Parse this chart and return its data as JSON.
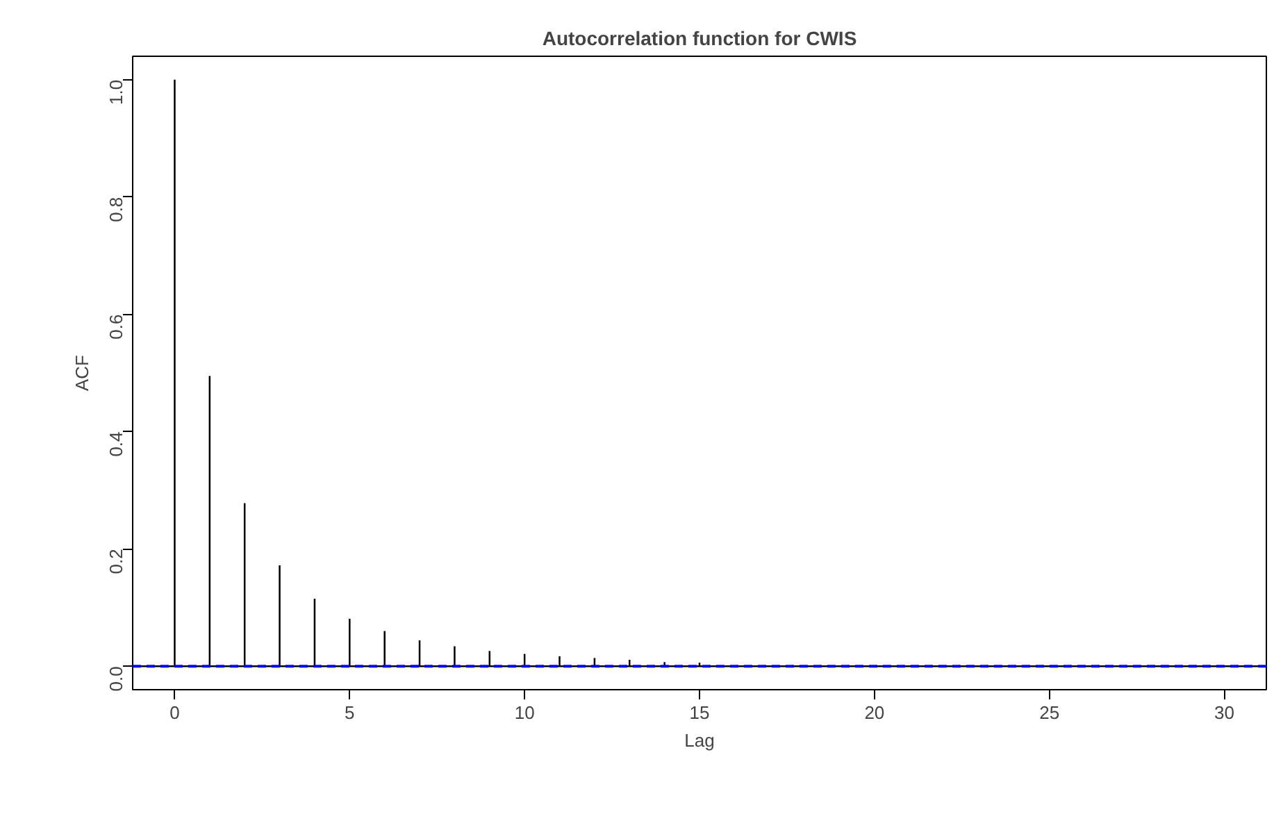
{
  "chart_data": {
    "type": "bar",
    "title": "Autocorrelation function for CWIS",
    "xlabel": "Lag",
    "ylabel": "ACF",
    "x": [
      0,
      1,
      2,
      3,
      4,
      5,
      6,
      7,
      8,
      9,
      10,
      11,
      12,
      13,
      14,
      15
    ],
    "values": [
      1.0,
      0.495,
      0.278,
      0.172,
      0.115,
      0.081,
      0.06,
      0.044,
      0.034,
      0.026,
      0.021,
      0.017,
      0.014,
      0.011,
      0.007,
      0.006
    ],
    "color": "#000000",
    "xlim": [
      -1.2,
      31.2
    ],
    "ylim": [
      -0.04,
      1.04
    ],
    "xticks": [
      0,
      5,
      10,
      15,
      20,
      25,
      30
    ],
    "yticks": [
      {
        "value": 0,
        "label": "0.0"
      },
      {
        "value": 0.2,
        "label": "0.2"
      },
      {
        "value": 0.4,
        "label": "0.4"
      },
      {
        "value": 0.6,
        "label": "0.6"
      },
      {
        "value": 0.8,
        "label": "0.8"
      },
      {
        "value": 1,
        "label": "1.0"
      }
    ],
    "ref_lines": [
      {
        "axis": "y",
        "value": 0,
        "color": "#0000ff",
        "line_style": "dashed"
      }
    ],
    "grid": false
  }
}
